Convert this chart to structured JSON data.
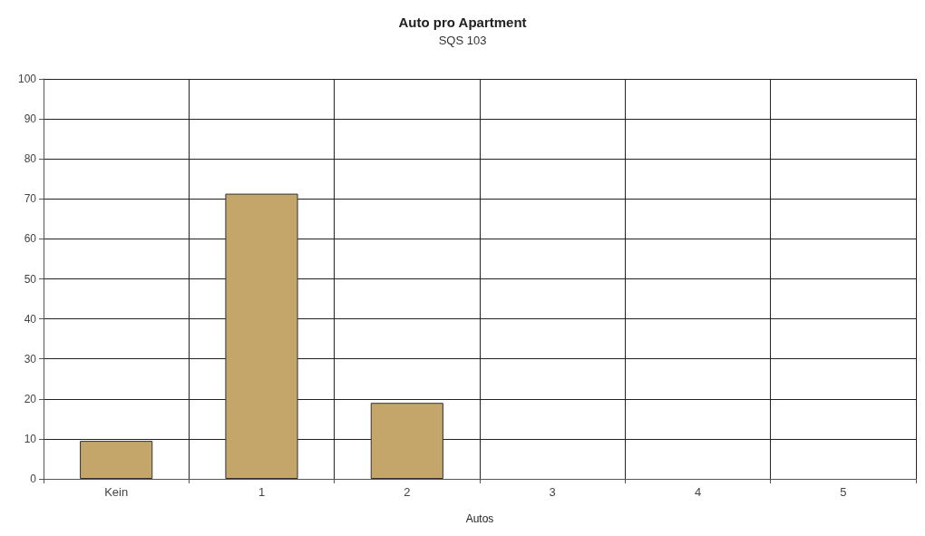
{
  "chart_data": {
    "type": "bar",
    "title": "Auto pro Apartment",
    "subtitle": "SQS 103",
    "xlabel": "Autos",
    "categories": [
      "Kein",
      "1",
      "2",
      "3",
      "4",
      "5"
    ],
    "values": [
      9.5,
      71.3,
      19,
      0,
      0,
      0
    ],
    "color": "#c4a66b",
    "ylim": [
      0,
      100
    ],
    "yticks": [
      0,
      10,
      20,
      30,
      40,
      50,
      60,
      70,
      80,
      90,
      100
    ],
    "grid": true
  }
}
